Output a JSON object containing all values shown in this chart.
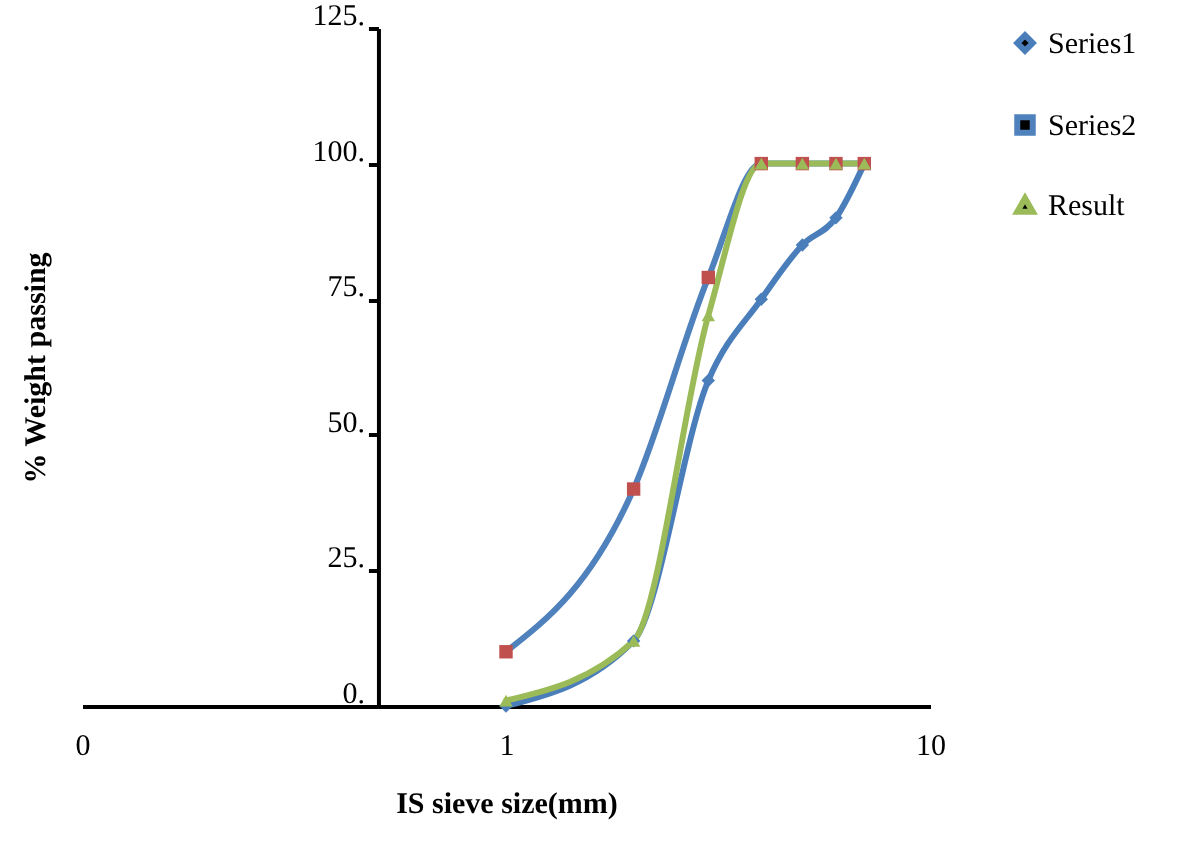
{
  "chart_data": {
    "type": "line",
    "xlabel": "IS sieve size(mm)",
    "ylabel": "% Weight passing",
    "log": "x",
    "xlim": [
      0.1,
      10
    ],
    "xticks": [
      {
        "value": 0.1,
        "label": "0"
      },
      1,
      10
    ],
    "ylim": [
      0,
      125
    ],
    "yticks": [
      {
        "value": 0,
        "label": "0."
      },
      {
        "value": 25,
        "label": "25."
      },
      {
        "value": 50,
        "label": "50."
      },
      {
        "value": 75,
        "label": "75."
      },
      {
        "value": 100,
        "label": "100."
      },
      {
        "value": 125,
        "label": "125."
      }
    ],
    "grid": false,
    "legend": "right",
    "series": [
      {
        "name": "Series1",
        "color": "#4a7ebb",
        "marker": "diamond",
        "x": [
          1,
          2,
          3,
          4,
          5,
          6,
          7
        ],
        "values": [
          0,
          12,
          60,
          75,
          85,
          90,
          100
        ]
      },
      {
        "name": "Series2",
        "color": "#4f81bd",
        "colors": [
          "#c0504d",
          "#c0504d",
          "#c0504d",
          "#c0504d",
          "#c0504d",
          "#c0504d",
          "#c0504d"
        ],
        "marker": "square",
        "x": [
          1,
          2,
          3,
          4,
          5,
          6,
          7
        ],
        "values": [
          10,
          40,
          79,
          100,
          100,
          100,
          100
        ]
      },
      {
        "name": "Result",
        "color": "#9bbb59",
        "marker": "triangle",
        "x": [
          1,
          2,
          3,
          4,
          5,
          6,
          7
        ],
        "values": [
          1,
          12,
          72,
          100,
          100,
          100,
          100
        ]
      }
    ]
  }
}
